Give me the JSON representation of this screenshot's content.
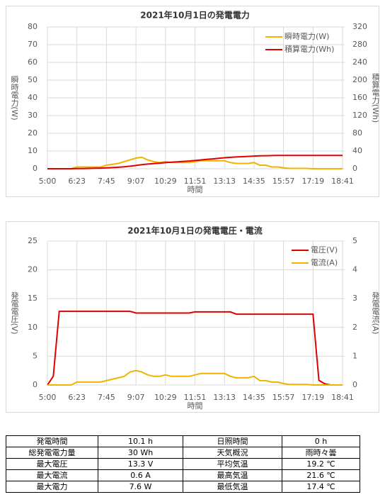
{
  "chart_data": [
    {
      "type": "line",
      "title": "2021年10月1日の発電電力",
      "x_label": "時間",
      "y_label": "瞬時電力(W)",
      "y2_label": "積算電力(Wh)",
      "categories": [
        "5:00",
        null,
        null,
        null,
        null,
        "6:23",
        null,
        null,
        null,
        null,
        "7:45",
        null,
        null,
        null,
        null,
        "9:07",
        null,
        null,
        null,
        null,
        "10:29",
        null,
        null,
        null,
        null,
        "11:51",
        null,
        null,
        null,
        null,
        "13:13",
        null,
        null,
        null,
        null,
        "14:35",
        null,
        null,
        null,
        null,
        "15:57",
        null,
        null,
        null,
        null,
        "17:19",
        null,
        null,
        null,
        null,
        "18:41"
      ],
      "ylim": [
        0,
        80
      ],
      "yticks": [
        0,
        10,
        20,
        30,
        40,
        50,
        60,
        70,
        80
      ],
      "y2lim": [
        0,
        320
      ],
      "y2ticks": [
        0,
        40,
        80,
        120,
        160,
        200,
        240,
        280,
        320
      ],
      "grid": true,
      "legend": "upper right",
      "series": [
        {
          "name": "瞬時電力(W)",
          "color": "#f0b400",
          "values": [
            0,
            0,
            0,
            0,
            0,
            1,
            1,
            1,
            1,
            1,
            2,
            2.5,
            3,
            4,
            5,
            6,
            6.5,
            5,
            4,
            3.5,
            4,
            3.5,
            3.5,
            3.5,
            3.5,
            4,
            4.5,
            4.5,
            4.5,
            4.5,
            4.5,
            3.5,
            3,
            3,
            3,
            3.5,
            2,
            2,
            1,
            1,
            0.5,
            0.2,
            0.2,
            0.2,
            0.2,
            0,
            0,
            0,
            0,
            0,
            0
          ]
        },
        {
          "name": "積算電力(Wh)",
          "color": "#e00000",
          "axis": "y2",
          "values": [
            0,
            0,
            0,
            0,
            0,
            0.3,
            0.5,
            0.8,
            1.1,
            1.4,
            1.9,
            2.5,
            3.3,
            4.4,
            5.8,
            7.4,
            9.2,
            10.6,
            11.7,
            12.6,
            13.7,
            14.7,
            15.6,
            16.6,
            17.5,
            18.6,
            19.8,
            21.1,
            22.3,
            23.5,
            24.8,
            25.7,
            26.5,
            27.2,
            27.9,
            28.6,
            29.1,
            29.5,
            29.7,
            29.9,
            30,
            30,
            30,
            30,
            30,
            30,
            30,
            30,
            30,
            30,
            30
          ]
        }
      ]
    },
    {
      "type": "line",
      "title": "2021年10月1日の発電電圧・電流",
      "x_label": "時間",
      "y_label": "発電電圧(V)",
      "y2_label": "発電電流(A)",
      "categories": [
        "5:00",
        null,
        null,
        null,
        null,
        "6:23",
        null,
        null,
        null,
        null,
        "7:45",
        null,
        null,
        null,
        null,
        "9:07",
        null,
        null,
        null,
        null,
        "10:29",
        null,
        null,
        null,
        null,
        "11:51",
        null,
        null,
        null,
        null,
        "13:13",
        null,
        null,
        null,
        null,
        "14:35",
        null,
        null,
        null,
        null,
        "15:57",
        null,
        null,
        null,
        null,
        "17:19",
        null,
        null,
        null,
        null,
        "18:41"
      ],
      "ylim": [
        0,
        25
      ],
      "yticks": [
        0,
        5,
        10,
        15,
        20,
        25
      ],
      "y2lim": [
        0,
        5
      ],
      "y2ticks": [
        0,
        1,
        2,
        3,
        4,
        5
      ],
      "grid": true,
      "legend": "upper right",
      "series": [
        {
          "name": "電圧(V)",
          "color": "#e00000",
          "values": [
            0,
            1.5,
            12.8,
            12.8,
            12.8,
            12.8,
            12.8,
            12.8,
            12.8,
            12.8,
            12.8,
            12.8,
            12.8,
            12.8,
            12.8,
            12.5,
            12.5,
            12.5,
            12.5,
            12.5,
            12.5,
            12.5,
            12.5,
            12.5,
            12.5,
            12.7,
            12.7,
            12.7,
            12.7,
            12.7,
            12.7,
            12.7,
            12.3,
            12.3,
            12.3,
            12.3,
            12.3,
            12.3,
            12.3,
            12.3,
            12.3,
            12.3,
            12.3,
            12.3,
            12.3,
            12.3,
            0.8,
            0.2,
            0,
            0,
            0
          ]
        },
        {
          "name": "電流(A)",
          "color": "#f0b400",
          "axis": "y2",
          "values": [
            0,
            0,
            0,
            0,
            0,
            0.1,
            0.1,
            0.1,
            0.1,
            0.1,
            0.15,
            0.2,
            0.25,
            0.3,
            0.45,
            0.5,
            0.45,
            0.35,
            0.3,
            0.3,
            0.35,
            0.3,
            0.3,
            0.3,
            0.3,
            0.35,
            0.4,
            0.4,
            0.4,
            0.4,
            0.4,
            0.3,
            0.25,
            0.25,
            0.25,
            0.3,
            0.15,
            0.15,
            0.1,
            0.1,
            0.05,
            0.02,
            0.02,
            0.02,
            0.02,
            0,
            0,
            0,
            0,
            0,
            0
          ]
        }
      ]
    }
  ],
  "table": {
    "rows": [
      [
        "発電時間",
        "10.1 h",
        "日照時間",
        "0 h"
      ],
      [
        "総発電電力量",
        "30 Wh",
        "天気概況",
        "雨時々曇"
      ],
      [
        "最大電圧",
        "13.3 V",
        "平均気温",
        "19.2 ℃"
      ],
      [
        "最大電流",
        "0.6 A",
        "最高気温",
        "21.6 ℃"
      ],
      [
        "最大電力",
        "7.6 W",
        "最低気温",
        "17.4 ℃"
      ]
    ]
  }
}
